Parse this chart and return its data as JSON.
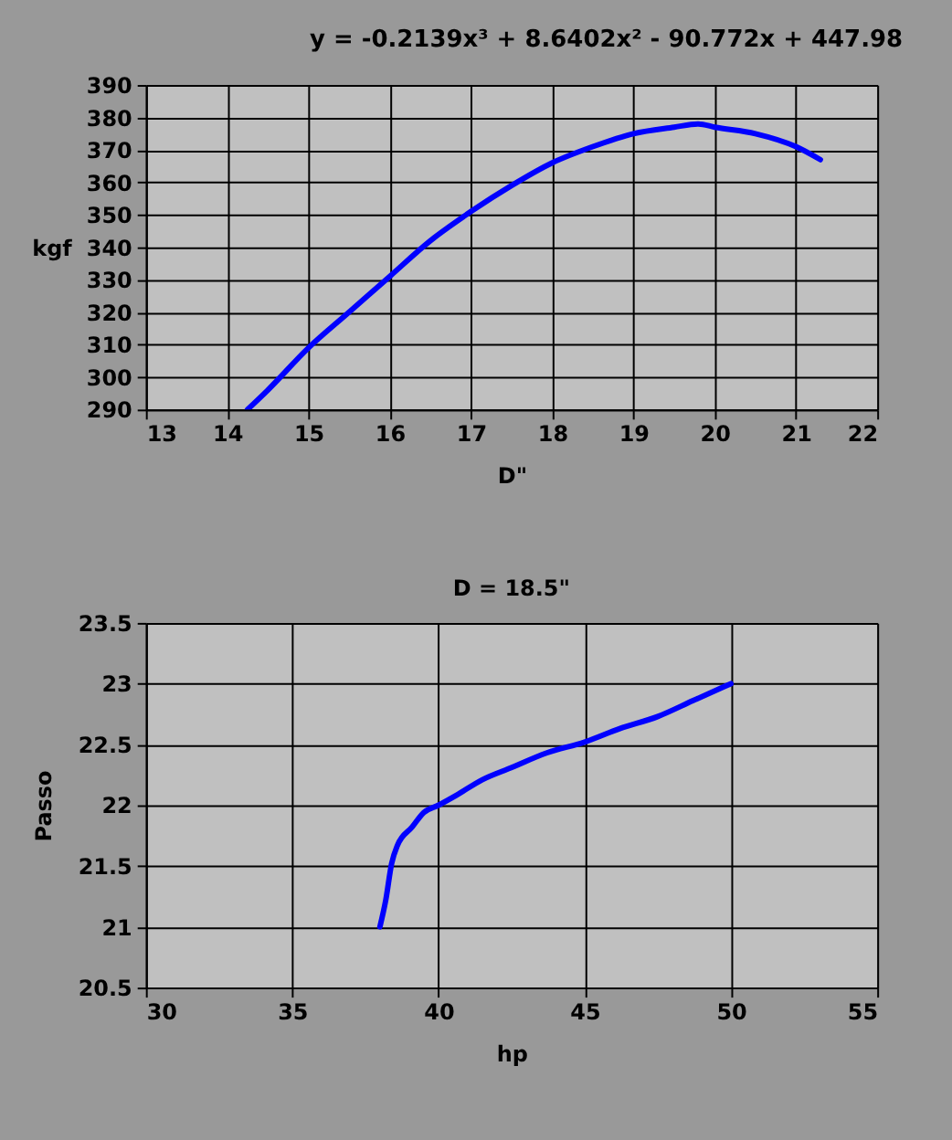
{
  "chart_data": [
    {
      "type": "line",
      "xlabel": "D\"",
      "ylabel": "kgf",
      "annotations": [
        "y = -0.2139x³ + 8.6402x² - 90.772x + 447.98"
      ],
      "x": [
        14.25,
        14.5,
        15,
        15.5,
        16,
        16.5,
        17,
        17.5,
        18,
        18.5,
        19,
        19.5,
        19.8,
        20,
        20.5,
        21,
        21.3
      ],
      "series": [
        {
          "color": "#0000ff",
          "values": [
            290,
            296,
            309,
            320,
            331,
            342,
            351,
            359,
            366,
            371,
            375,
            377,
            378,
            377,
            375,
            371,
            367
          ]
        }
      ],
      "xlim": [
        13,
        22
      ],
      "ylim": [
        290,
        390
      ],
      "xticks": [
        13,
        14,
        15,
        16,
        17,
        18,
        19,
        20,
        21,
        22
      ],
      "yticks": [
        290,
        300,
        310,
        320,
        330,
        340,
        350,
        360,
        370,
        380,
        390
      ],
      "grid": true
    },
    {
      "type": "line",
      "title": "D = 18.5\"",
      "xlabel": "hp",
      "ylabel": "Passo",
      "x": [
        38,
        38.2,
        38.4,
        38.6,
        39.1,
        39.5,
        40,
        40.6,
        41.5,
        42.5,
        43.7,
        45,
        46.2,
        47.5,
        48.7,
        50
      ],
      "series": [
        {
          "color": "#0000ff",
          "values": [
            21,
            21.22,
            21.52,
            21.67,
            21.82,
            21.94,
            22,
            22.08,
            22.21,
            22.31,
            22.43,
            22.52,
            22.63,
            22.73,
            22.86,
            23
          ]
        }
      ],
      "xlim": [
        30,
        55
      ],
      "ylim": [
        20.5,
        23.5
      ],
      "xticks": [
        30,
        35,
        40,
        45,
        50,
        55
      ],
      "yticks": [
        20.5,
        21,
        21.5,
        22,
        22.5,
        23,
        23.5
      ],
      "grid": true
    }
  ]
}
